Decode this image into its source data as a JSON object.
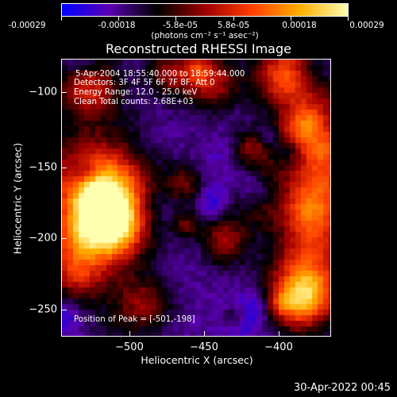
{
  "colorbar": {
    "tick_labels": [
      "-0.00029",
      "-0.00018",
      "-5.8e-05",
      "5.8e-05",
      "0.00018",
      "0.00029"
    ],
    "units": "(photons cm⁻² s⁻¹ asec⁻²)"
  },
  "plot": {
    "title": "Reconstructed RHESSI Image",
    "annotations": {
      "time_range": "5-Apr-2004 18:55:40.000 to 18:59:44.000",
      "detectors": "Detectors: 3F 4F 5F 6F 7F 8F, Att 0",
      "energy": "Energy Range: 12.0 - 25.0 keV",
      "clean": "Clean     Total counts: 2.68E+03",
      "peak": "Position of Peak = [-501,-198]"
    },
    "xlabel": "Heliocentric X (arcsec)",
    "ylabel": "Heliocentric Y (arcsec)",
    "x_ticks": [
      "−500",
      "−450",
      "−400"
    ],
    "y_ticks": [
      "−100",
      "−150",
      "−200",
      "−250"
    ]
  },
  "timestamp": "30-Apr-2022 00:45",
  "chart_data": {
    "type": "heatmap",
    "title": "Reconstructed RHESSI Image",
    "xlabel": "Heliocentric X (arcsec)",
    "ylabel": "Heliocentric Y (arcsec)",
    "xlim": [
      -548,
      -372
    ],
    "ylim": [
      -268,
      -84
    ],
    "x_ticks": [
      -500,
      -450,
      -400
    ],
    "y_ticks": [
      -100,
      -150,
      -200,
      -250
    ],
    "colorbar_range": [
      -0.00029,
      0.00029
    ],
    "colorbar_ticks": [
      -0.00029,
      -0.00018,
      -5.8e-05,
      5.8e-05,
      0.00018,
      0.00029
    ],
    "colormap": [
      "#0000ff",
      "#5a00b0",
      "#000000",
      "#a00000",
      "#ff4000",
      "#ffb000",
      "#ffffb0"
    ],
    "peak_position": [
      -501,
      -198
    ]
  }
}
